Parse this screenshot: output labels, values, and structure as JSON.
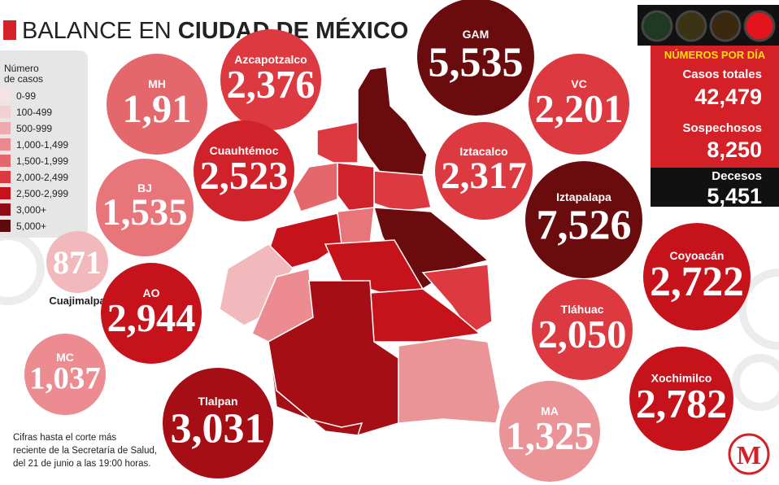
{
  "header": {
    "title_light": "BALANCE EN",
    "title_bold": "CIUDAD DE MÉXICO"
  },
  "legend": {
    "title_lines": [
      "Número",
      "de casos"
    ],
    "items": [
      {
        "label": "0-99",
        "color": "#f6e3e4"
      },
      {
        "label": "100-499",
        "color": "#f3cfd0"
      },
      {
        "label": "500-999",
        "color": "#efaaad"
      },
      {
        "label": "1,000-1,499",
        "color": "#ea8a8e"
      },
      {
        "label": "1,500-1,999",
        "color": "#e4676c"
      },
      {
        "label": "2,000-2,499",
        "color": "#dc3a40"
      },
      {
        "label": "2,500-2,999",
        "color": "#c6121a"
      },
      {
        "label": "3,000+",
        "color": "#8f0d12"
      },
      {
        "label": "5,000+",
        "color": "#5e0a0c"
      }
    ]
  },
  "boroughs": [
    {
      "name": "MH",
      "value": "1,91",
      "color": "#e4676c"
    },
    {
      "name": "Azcapotzalco",
      "value": "2,376",
      "color": "#dc3a40"
    },
    {
      "name": "GAM",
      "value": "5,535",
      "color": "#6a0b0e"
    },
    {
      "name": "VC",
      "value": "2,201",
      "color": "#dc3a40"
    },
    {
      "name": "Cuauhtémoc",
      "value": "2,523",
      "color": "#d0222a"
    },
    {
      "name": "Iztacalco",
      "value": "2,317",
      "color": "#dc3a40"
    },
    {
      "name": "BJ",
      "value": "1,535",
      "color": "#e8757a"
    },
    {
      "name": "Iztapalapa",
      "value": "7,526",
      "color": "#6a0b0e"
    },
    {
      "name": "Cuajimalpa",
      "value": "871",
      "color": "#f1b9bb"
    },
    {
      "name": "Coyoacán",
      "value": "2,722",
      "color": "#c6121a"
    },
    {
      "name": "AO",
      "value": "2,944",
      "color": "#c6121a"
    },
    {
      "name": "Tláhuac",
      "value": "2,050",
      "color": "#dc3a40"
    },
    {
      "name": "MC",
      "value": "1,037",
      "color": "#ec8c90"
    },
    {
      "name": "Tlalpan",
      "value": "3,031",
      "color": "#a50e14"
    },
    {
      "name": "MA",
      "value": "1,325",
      "color": "#ea9497"
    },
    {
      "name": "Xochimilco",
      "value": "2,782",
      "color": "#c6121a"
    }
  ],
  "stats": {
    "heading": "NÚMEROS POR DÍA",
    "items": [
      {
        "label": "Casos totales",
        "value": "42,479"
      },
      {
        "label": "Sospechosos",
        "value": "8,250"
      },
      {
        "label": "Decesos",
        "value": "5,451"
      }
    ]
  },
  "note": {
    "lines": [
      "Cifras hasta el corte más",
      "reciente de la Secretaría de Salud,",
      "del 21 de junio a las 19:00 horas."
    ]
  },
  "logo": {
    "letter": "M"
  }
}
